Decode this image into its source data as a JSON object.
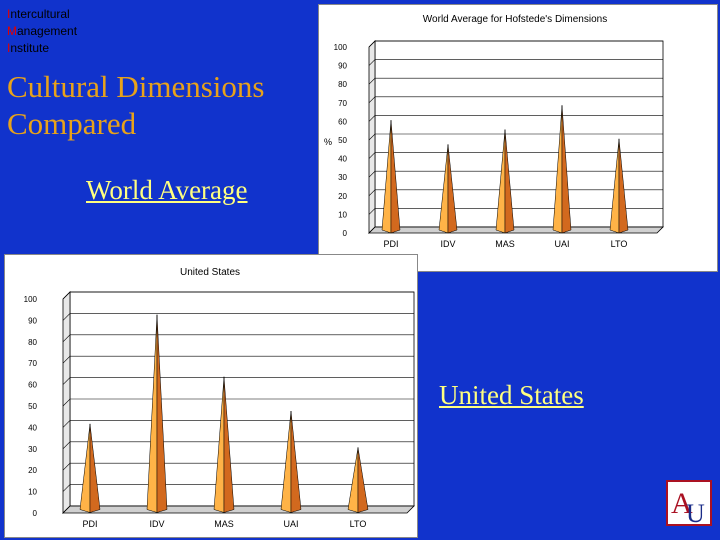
{
  "institute": {
    "lines": [
      {
        "first": "I",
        "rest": "ntercultural"
      },
      {
        "first": "M",
        "rest": "anagement"
      },
      {
        "first": "I",
        "rest": "nstitute"
      }
    ]
  },
  "slide": {
    "title_line1": "Cultural Dimensions",
    "title_line2": "Compared",
    "world_label": "World Average",
    "us_label": "United States"
  },
  "colors": {
    "background": "#1133cc",
    "title": "#e8a21a",
    "label": "#ffff80",
    "cone_light": "#ffb347",
    "cone_dark": "#d2691e"
  },
  "logo": {
    "letters": "AU"
  },
  "chart_data": [
    {
      "type": "bar",
      "title": "World Average for Hofstede's Dimensions",
      "ylabel": "%",
      "categories": [
        "PDI",
        "IDV",
        "MAS",
        "UAI",
        "LTO"
      ],
      "values": [
        59,
        46,
        54,
        67,
        49
      ],
      "ylim": [
        0,
        100
      ],
      "yticks": [
        0,
        10,
        20,
        30,
        40,
        50,
        60,
        70,
        80,
        90,
        100
      ],
      "grid": true
    },
    {
      "type": "bar",
      "title": "United States",
      "ylabel": "",
      "categories": [
        "PDI",
        "IDV",
        "MAS",
        "UAI",
        "LTO"
      ],
      "values": [
        40,
        91,
        62,
        46,
        29
      ],
      "ylim": [
        0,
        100
      ],
      "yticks": [
        0,
        10,
        20,
        30,
        40,
        50,
        60,
        70,
        80,
        90,
        100
      ],
      "grid": true
    }
  ]
}
